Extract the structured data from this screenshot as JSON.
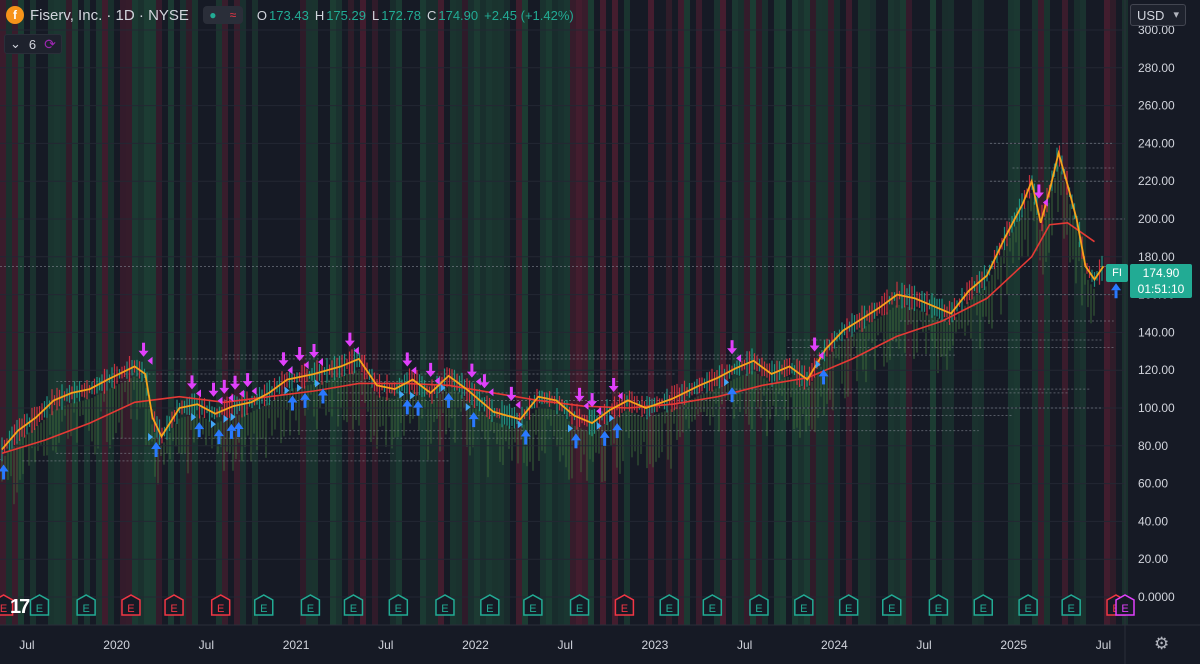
{
  "header": {
    "logo_letter": "f",
    "title": "Fiserv, Inc. · 1D · NYSE",
    "ohlc": [
      {
        "k": "O",
        "v": "173.43"
      },
      {
        "k": "H",
        "v": "175.29"
      },
      {
        "k": "L",
        "v": "172.78"
      },
      {
        "k": "C",
        "v": "174.90"
      }
    ],
    "change": "+2.45 (+1.42%)"
  },
  "indicator": {
    "count": "6"
  },
  "currency": "USD",
  "price_tag": {
    "symbol": "FI",
    "price": "174.90",
    "countdown": "01:51:10"
  },
  "colors": {
    "background": "#161a25",
    "up": "#22ab94",
    "down": "#f23645",
    "ma_fast": "#f7a21b",
    "ma_slow": "#e53935",
    "sell_arrow": "#e040fb",
    "buy_arrow": "#2979ff",
    "earnings_badge": "#22ab94",
    "earnings_badge_miss": "#f23645",
    "earnings_badge_upcoming": "#e040fb"
  },
  "chart_data": {
    "type": "line",
    "title": "",
    "ylabel": "",
    "xlabel": "",
    "yaxis_ticks": [
      "300.00",
      "280.00",
      "260.00",
      "240.00",
      "220.00",
      "200.00",
      "180.00",
      "160.00",
      "140.00",
      "120.00",
      "100.00",
      "80.00",
      "60.00",
      "40.00",
      "20.00",
      "0.0000"
    ],
    "ylim": [
      0,
      300
    ],
    "xlim": [
      2019.35,
      2025.62
    ],
    "xaxis_ticks": [
      {
        "label": "Jul",
        "x": 2019.5
      },
      {
        "label": "2020",
        "x": 2020.0
      },
      {
        "label": "Jul",
        "x": 2020.5
      },
      {
        "label": "2021",
        "x": 2021.0
      },
      {
        "label": "Jul",
        "x": 2021.5
      },
      {
        "label": "2022",
        "x": 2022.0
      },
      {
        "label": "Jul",
        "x": 2022.5
      },
      {
        "label": "2023",
        "x": 2023.0
      },
      {
        "label": "Jul",
        "x": 2023.5
      },
      {
        "label": "2024",
        "x": 2024.0
      },
      {
        "label": "Jul",
        "x": 2024.5
      },
      {
        "label": "2025",
        "x": 2025.0
      },
      {
        "label": "Jul",
        "x": 2025.5
      }
    ],
    "series": [
      {
        "type": "price",
        "x": [
          2019.36,
          2019.45,
          2019.55,
          2019.65,
          2019.75,
          2019.85,
          2019.95,
          2020.1,
          2020.16,
          2020.2,
          2020.25,
          2020.35,
          2020.45,
          2020.55,
          2020.65,
          2020.75,
          2020.85,
          2020.95,
          2021.1,
          2021.25,
          2021.35,
          2021.45,
          2021.55,
          2021.65,
          2021.75,
          2021.85,
          2021.95,
          2022.1,
          2022.25,
          2022.35,
          2022.45,
          2022.55,
          2022.65,
          2022.75,
          2022.85,
          2022.95,
          2023.1,
          2023.25,
          2023.35,
          2023.45,
          2023.55,
          2023.65,
          2023.75,
          2023.85,
          2023.95,
          2024.05,
          2024.15,
          2024.25,
          2024.35,
          2024.45,
          2024.55,
          2024.65,
          2024.75,
          2024.85,
          2024.95,
          2025.05,
          2025.1,
          2025.15,
          2025.2,
          2025.25,
          2025.3,
          2025.35,
          2025.4,
          2025.45,
          2025.5
        ],
        "y": [
          78,
          88,
          95,
          104,
          108,
          110,
          115,
          122,
          118,
          95,
          85,
          100,
          102,
          97,
          101,
          103,
          108,
          115,
          118,
          122,
          126,
          112,
          110,
          115,
          108,
          117,
          110,
          98,
          94,
          106,
          104,
          96,
          92,
          99,
          104,
          100,
          105,
          112,
          116,
          121,
          125,
          118,
          122,
          115,
          131,
          141,
          147,
          153,
          160,
          158,
          154,
          150,
          162,
          170,
          190,
          208,
          220,
          198,
          215,
          235,
          218,
          200,
          175,
          168,
          175
        ]
      },
      {
        "type": "ma_slow",
        "x": [
          2019.36,
          2019.6,
          2019.85,
          2020.1,
          2020.35,
          2020.6,
          2020.85,
          2021.1,
          2021.35,
          2021.6,
          2021.85,
          2022.1,
          2022.35,
          2022.6,
          2022.85,
          2023.1,
          2023.35,
          2023.6,
          2023.85,
          2024.1,
          2024.35,
          2024.6,
          2024.85,
          2025.1,
          2025.2,
          2025.3,
          2025.45
        ],
        "y": [
          76,
          83,
          92,
          103,
          106,
          103,
          106,
          109,
          113,
          113,
          112,
          108,
          104,
          101,
          100,
          102,
          106,
          112,
          116,
          126,
          138,
          146,
          158,
          180,
          197,
          198,
          188
        ]
      }
    ],
    "markers": {
      "sell_dates": [
        2020.15,
        2020.42,
        2020.54,
        2020.6,
        2020.66,
        2020.73,
        2020.93,
        2021.02,
        2021.1,
        2021.3,
        2021.62,
        2021.75,
        2021.98,
        2022.05,
        2022.2,
        2022.58,
        2022.65,
        2022.77,
        2023.43,
        2023.89,
        2025.14
      ],
      "buy_dates": [
        2019.37,
        2020.22,
        2020.46,
        2020.57,
        2020.64,
        2020.68,
        2020.98,
        2021.05,
        2021.15,
        2021.62,
        2021.68,
        2021.85,
        2021.99,
        2022.28,
        2022.56,
        2022.72,
        2022.79,
        2023.43,
        2023.94,
        2025.57
      ]
    },
    "earnings_badges": {
      "label": "E",
      "dates": [
        2019.37,
        2019.57,
        2019.83,
        2020.08,
        2020.32,
        2020.58,
        2020.82,
        2021.08,
        2021.32,
        2021.57,
        2021.83,
        2022.08,
        2022.32,
        2022.58,
        2022.83,
        2023.08,
        2023.32,
        2023.58,
        2023.83,
        2024.08,
        2024.32,
        2024.58,
        2024.83,
        2025.08,
        2025.32,
        2025.57,
        2025.62
      ],
      "miss_dates": [
        2019.37,
        2020.08,
        2020.32,
        2020.58,
        2022.83,
        2025.57
      ]
    }
  }
}
